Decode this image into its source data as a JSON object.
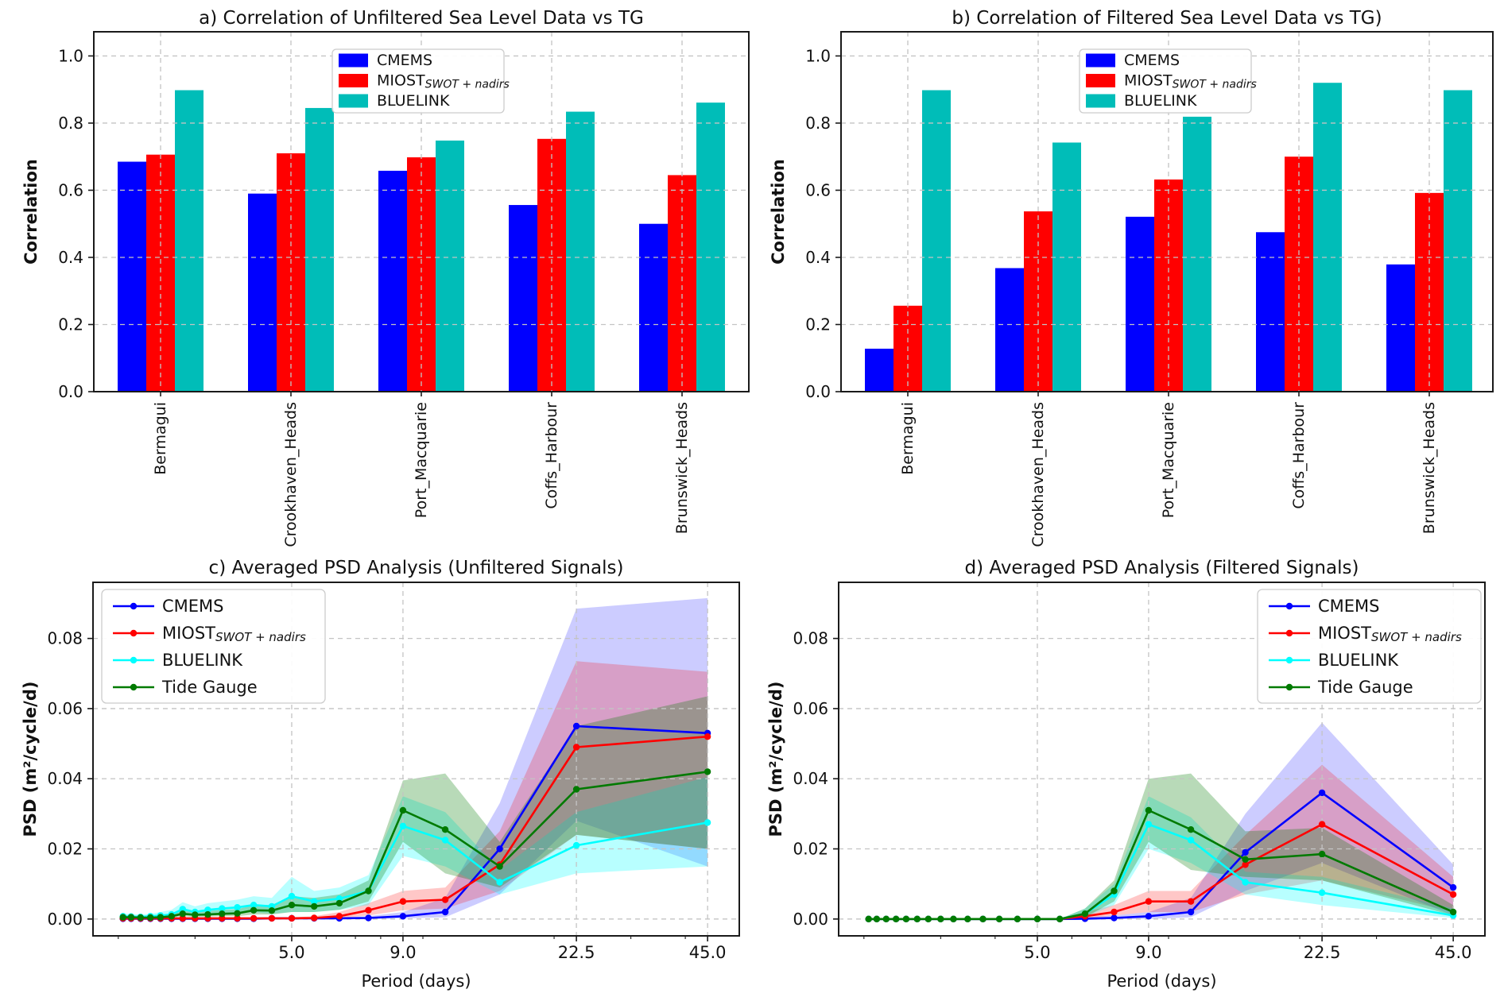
{
  "figure": {
    "background": "#ffffff",
    "description": "2x2 panel figure: correlation bar charts (top) and averaged PSD line charts (bottom)"
  },
  "colors": {
    "cmems": "#0000ff",
    "miost": "#ff0000",
    "bluelink_bar": "#00bdb8",
    "bluelink_line": "#00ffff",
    "tide_gauge": "#007a00",
    "grid": "#c4c4c4",
    "spine": "#1a1a1a",
    "legend_border": "#cccccc"
  },
  "chart_data": [
    {
      "id": "a",
      "type": "bar",
      "title": "a) Correlation of Unfiltered Sea Level Data vs TG",
      "ylabel": "Correlation",
      "ylim": [
        0,
        1.072
      ],
      "yticks": [
        {
          "v": 0.0,
          "label": "0.0"
        },
        {
          "v": 0.2,
          "label": "0.2"
        },
        {
          "v": 0.4,
          "label": "0.4"
        },
        {
          "v": 0.6,
          "label": "0.6"
        },
        {
          "v": 0.8,
          "label": "0.8"
        },
        {
          "v": 1.0,
          "label": "1.0"
        }
      ],
      "categories": [
        "Bermagui",
        "Crookhaven_Heads",
        "Port_Macquarie",
        "Coffs_Harbour",
        "Brunswick_Heads"
      ],
      "legend_position": "upper center-left",
      "series": [
        {
          "name": "CMEMS",
          "color": "#0000ff",
          "values": [
            0.685,
            0.59,
            0.658,
            0.556,
            0.5
          ]
        },
        {
          "name": "MIOST",
          "name_sub": "SWOT + nadirs",
          "color": "#ff0000",
          "values": [
            0.706,
            0.71,
            0.698,
            0.753,
            0.645
          ]
        },
        {
          "name": "BLUELINK",
          "color": "#00bdb8",
          "values": [
            0.898,
            0.845,
            0.748,
            0.834,
            0.861
          ]
        }
      ]
    },
    {
      "id": "b",
      "type": "bar",
      "title": "b) Correlation of Filtered Sea Level Data vs TG)",
      "ylabel": "Correlation",
      "ylim": [
        0,
        1.072
      ],
      "yticks": [
        {
          "v": 0.0,
          "label": "0.0"
        },
        {
          "v": 0.2,
          "label": "0.2"
        },
        {
          "v": 0.4,
          "label": "0.4"
        },
        {
          "v": 0.6,
          "label": "0.6"
        },
        {
          "v": 0.8,
          "label": "0.8"
        },
        {
          "v": 1.0,
          "label": "1.0"
        }
      ],
      "categories": [
        "Bermagui",
        "Crookhaven_Heads",
        "Port_Macquarie",
        "Coffs_Harbour",
        "Brunswick_Heads"
      ],
      "legend_position": "upper center-left",
      "series": [
        {
          "name": "CMEMS",
          "color": "#0000ff",
          "values": [
            0.128,
            0.368,
            0.521,
            0.475,
            0.379
          ]
        },
        {
          "name": "MIOST",
          "name_sub": "SWOT + nadirs",
          "color": "#ff0000",
          "values": [
            0.256,
            0.537,
            0.632,
            0.7,
            0.592
          ]
        },
        {
          "name": "BLUELINK",
          "color": "#00bdb8",
          "values": [
            0.898,
            0.742,
            0.819,
            0.92,
            0.898
          ]
        }
      ]
    },
    {
      "id": "c",
      "type": "line",
      "title": "c) Averaged PSD Analysis (Unfiltered Signals)",
      "xlabel": "Period (days)",
      "ylabel": "PSD (m²/cycle/d)",
      "xscale": "log",
      "xlim": [
        1.75,
        53.2
      ],
      "ylim": [
        -0.0048,
        0.096
      ],
      "x": [
        2.05,
        2.14,
        2.25,
        2.37,
        2.5,
        2.65,
        2.81,
        3.0,
        3.21,
        3.46,
        3.75,
        4.09,
        4.5,
        5.0,
        5.63,
        6.43,
        7.5,
        9.0,
        11.25,
        15.0,
        22.5,
        45.0
      ],
      "xticks": [
        {
          "v": 5.0,
          "label": "5.0"
        },
        {
          "v": 9.0,
          "label": "9.0"
        },
        {
          "v": 22.5,
          "label": "22.5"
        },
        {
          "v": 45.0,
          "label": "45.0"
        }
      ],
      "xminor": [
        2,
        3,
        4,
        6,
        7,
        8,
        10,
        20,
        30,
        40
      ],
      "yticks": [
        {
          "v": 0.0,
          "label": "0.00"
        },
        {
          "v": 0.02,
          "label": "0.02"
        },
        {
          "v": 0.04,
          "label": "0.04"
        },
        {
          "v": 0.06,
          "label": "0.06"
        },
        {
          "v": 0.08,
          "label": "0.08"
        }
      ],
      "legend_position": "upper left",
      "series": [
        {
          "name": "CMEMS",
          "color": "#0000ff",
          "band_alpha": 0.2,
          "values": [
            0.0001,
            0.0001,
            0.0001,
            0.0001,
            0.0001,
            0.0001,
            0.0001,
            0.0001,
            0.0001,
            0.0001,
            0.0001,
            0.0001,
            0.0002,
            0.0002,
            0.0002,
            0.0002,
            0.0003,
            0.0008,
            0.002,
            0.02,
            0.055,
            0.053
          ],
          "band_lo": [
            0,
            0,
            0,
            0,
            0,
            0,
            0,
            0,
            0,
            0,
            0,
            0,
            0,
            0,
            0,
            0,
            0,
            0.0002,
            0.0005,
            0.007,
            0.028,
            0.015
          ],
          "band_hi": [
            0.0002,
            0.0002,
            0.0002,
            0.0002,
            0.0002,
            0.0002,
            0.0002,
            0.0002,
            0.0002,
            0.0002,
            0.0002,
            0.0002,
            0.0004,
            0.0004,
            0.0004,
            0.0005,
            0.0008,
            0.002,
            0.006,
            0.033,
            0.0885,
            0.0915
          ]
        },
        {
          "name": "MIOST",
          "name_sub": "SWOT + nadirs",
          "color": "#ff0000",
          "band_alpha": 0.22,
          "values": [
            0.0002,
            0.0002,
            0.0002,
            0.0002,
            0.0002,
            0.0002,
            0.0002,
            0.0002,
            0.0002,
            0.0002,
            0.0002,
            0.0002,
            0.0002,
            0.0002,
            0.0003,
            0.0008,
            0.0025,
            0.005,
            0.0055,
            0.0155,
            0.049,
            0.052
          ],
          "band_lo": [
            0.0001,
            0.0001,
            0.0001,
            0.0001,
            0.0001,
            0.0001,
            0.0001,
            0.0001,
            0.0001,
            0.0001,
            0.0001,
            0.0001,
            0.0001,
            0.0001,
            0.0001,
            0.0003,
            0.001,
            0.0025,
            0.003,
            0.008,
            0.024,
            0.02
          ],
          "band_hi": [
            0.0004,
            0.0004,
            0.0004,
            0.0004,
            0.0004,
            0.0004,
            0.0004,
            0.0004,
            0.0004,
            0.0004,
            0.0004,
            0.0004,
            0.0004,
            0.0005,
            0.0008,
            0.002,
            0.0045,
            0.008,
            0.009,
            0.025,
            0.0735,
            0.0705
          ]
        },
        {
          "name": "BLUELINK",
          "color": "#00ffff",
          "band_alpha": 0.28,
          "values": [
            0.0008,
            0.0007,
            0.0006,
            0.0008,
            0.001,
            0.0013,
            0.0028,
            0.002,
            0.0026,
            0.003,
            0.0033,
            0.004,
            0.0036,
            0.0065,
            0.005,
            0.0058,
            0.008,
            0.0265,
            0.0225,
            0.0105,
            0.021,
            0.0275
          ],
          "band_lo": [
            0.0003,
            0.0003,
            0.0002,
            0.0003,
            0.0004,
            0.0005,
            0.0012,
            0.0008,
            0.0011,
            0.0013,
            0.0015,
            0.002,
            0.0015,
            0.002,
            0.002,
            0.0026,
            0.004,
            0.018,
            0.015,
            0.007,
            0.013,
            0.015
          ],
          "band_hi": [
            0.0016,
            0.0014,
            0.0013,
            0.0015,
            0.002,
            0.0026,
            0.0048,
            0.0036,
            0.0045,
            0.005,
            0.0055,
            0.0065,
            0.006,
            0.012,
            0.008,
            0.009,
            0.0125,
            0.035,
            0.0305,
            0.014,
            0.0305,
            0.0405
          ]
        },
        {
          "name": "Tide Gauge",
          "color": "#007a00",
          "band_alpha": 0.28,
          "values": [
            0.0005,
            0.0005,
            0.0004,
            0.0004,
            0.0005,
            0.0008,
            0.0015,
            0.0012,
            0.0013,
            0.0015,
            0.0016,
            0.0025,
            0.0024,
            0.004,
            0.0036,
            0.0045,
            0.008,
            0.031,
            0.0255,
            0.015,
            0.037,
            0.042
          ],
          "band_lo": [
            0.0002,
            0.0002,
            0.0002,
            0.0002,
            0.0002,
            0.0004,
            0.0008,
            0.0006,
            0.0007,
            0.0008,
            0.0008,
            0.0013,
            0.0013,
            0.002,
            0.002,
            0.0026,
            0.005,
            0.022,
            0.013,
            0.009,
            0.024,
            0.02
          ],
          "band_hi": [
            0.001,
            0.001,
            0.0009,
            0.0009,
            0.001,
            0.0015,
            0.0026,
            0.0022,
            0.0023,
            0.0026,
            0.0028,
            0.004,
            0.004,
            0.0065,
            0.006,
            0.007,
            0.011,
            0.0395,
            0.0415,
            0.022,
            0.055,
            0.0635
          ]
        }
      ]
    },
    {
      "id": "d",
      "type": "line",
      "title": "d) Averaged PSD Analysis (Filtered Signals)",
      "xlabel": "Period (days)",
      "ylabel": "PSD (m²/cycle/d)",
      "xscale": "log",
      "xlim": [
        1.75,
        53.2
      ],
      "ylim": [
        -0.0048,
        0.096
      ],
      "x": [
        2.05,
        2.14,
        2.25,
        2.37,
        2.5,
        2.65,
        2.81,
        3.0,
        3.21,
        3.46,
        3.75,
        4.09,
        4.5,
        5.0,
        5.63,
        6.43,
        7.5,
        9.0,
        11.25,
        15.0,
        22.5,
        45.0
      ],
      "xticks": [
        {
          "v": 5.0,
          "label": "5.0"
        },
        {
          "v": 9.0,
          "label": "9.0"
        },
        {
          "v": 22.5,
          "label": "22.5"
        },
        {
          "v": 45.0,
          "label": "45.0"
        }
      ],
      "xminor": [
        2,
        3,
        4,
        6,
        7,
        8,
        10,
        20,
        30,
        40
      ],
      "yticks": [
        {
          "v": 0.0,
          "label": "0.00"
        },
        {
          "v": 0.02,
          "label": "0.02"
        },
        {
          "v": 0.04,
          "label": "0.04"
        },
        {
          "v": 0.06,
          "label": "0.06"
        },
        {
          "v": 0.08,
          "label": "0.08"
        }
      ],
      "legend_position": "upper right",
      "series": [
        {
          "name": "CMEMS",
          "color": "#0000ff",
          "band_alpha": 0.2,
          "values": [
            0,
            0,
            0,
            0,
            0,
            0,
            0,
            0,
            0,
            0,
            0,
            0,
            0,
            0,
            0,
            0.0001,
            0.0003,
            0.0008,
            0.002,
            0.019,
            0.036,
            0.009
          ],
          "band_lo": [
            0,
            0,
            0,
            0,
            0,
            0,
            0,
            0,
            0,
            0,
            0,
            0,
            0,
            0,
            0,
            0,
            0,
            0,
            0.0005,
            0.008,
            0.016,
            0.001
          ],
          "band_hi": [
            0,
            0,
            0,
            0,
            0,
            0,
            0,
            0,
            0,
            0,
            0,
            0,
            0,
            0,
            0,
            0.0005,
            0.001,
            0.002,
            0.006,
            0.03,
            0.056,
            0.0155
          ]
        },
        {
          "name": "MIOST",
          "name_sub": "SWOT + nadirs",
          "color": "#ff0000",
          "band_alpha": 0.22,
          "values": [
            0,
            0,
            0,
            0,
            0,
            0,
            0,
            0,
            0,
            0,
            0,
            0,
            0,
            0,
            0,
            0.0008,
            0.002,
            0.005,
            0.005,
            0.0155,
            0.027,
            0.007
          ],
          "band_lo": [
            0,
            0,
            0,
            0,
            0,
            0,
            0,
            0,
            0,
            0,
            0,
            0,
            0,
            0,
            0,
            0.0002,
            0.001,
            0.002,
            0.002,
            0.007,
            0.011,
            0.002
          ],
          "band_hi": [
            0,
            0,
            0,
            0,
            0,
            0,
            0,
            0,
            0,
            0,
            0,
            0,
            0,
            0,
            0,
            0.002,
            0.004,
            0.008,
            0.008,
            0.024,
            0.044,
            0.012
          ]
        },
        {
          "name": "BLUELINK",
          "color": "#00ffff",
          "band_alpha": 0.28,
          "values": [
            0,
            0,
            0,
            0,
            0,
            0,
            0,
            0,
            0,
            0,
            0,
            0,
            0,
            0,
            0,
            0.0015,
            0.007,
            0.027,
            0.0225,
            0.0105,
            0.0075,
            0.001
          ],
          "band_lo": [
            0,
            0,
            0,
            0,
            0,
            0,
            0,
            0,
            0,
            0,
            0,
            0,
            0,
            0,
            0,
            0.0005,
            0.004,
            0.02,
            0.016,
            0.007,
            0.004,
            0.0003
          ],
          "band_hi": [
            0,
            0,
            0,
            0,
            0,
            0,
            0,
            0,
            0,
            0,
            0,
            0,
            0,
            0,
            0,
            0.003,
            0.01,
            0.035,
            0.029,
            0.0135,
            0.012,
            0.003
          ]
        },
        {
          "name": "Tide Gauge",
          "color": "#007a00",
          "band_alpha": 0.28,
          "values": [
            0,
            0,
            0,
            0,
            0,
            0,
            0,
            0,
            0,
            0,
            0,
            0,
            0,
            0,
            0,
            0.0015,
            0.008,
            0.031,
            0.0255,
            0.017,
            0.0185,
            0.002
          ],
          "band_lo": [
            0,
            0,
            0,
            0,
            0,
            0,
            0,
            0,
            0,
            0,
            0,
            0,
            0,
            0,
            0,
            0.0005,
            0.005,
            0.022,
            0.014,
            0.012,
            0.011,
            0.001
          ],
          "band_hi": [
            0,
            0,
            0,
            0,
            0,
            0,
            0,
            0,
            0,
            0,
            0,
            0,
            0,
            0,
            0,
            0.003,
            0.011,
            0.04,
            0.0415,
            0.025,
            0.026,
            0.004
          ]
        }
      ]
    }
  ]
}
